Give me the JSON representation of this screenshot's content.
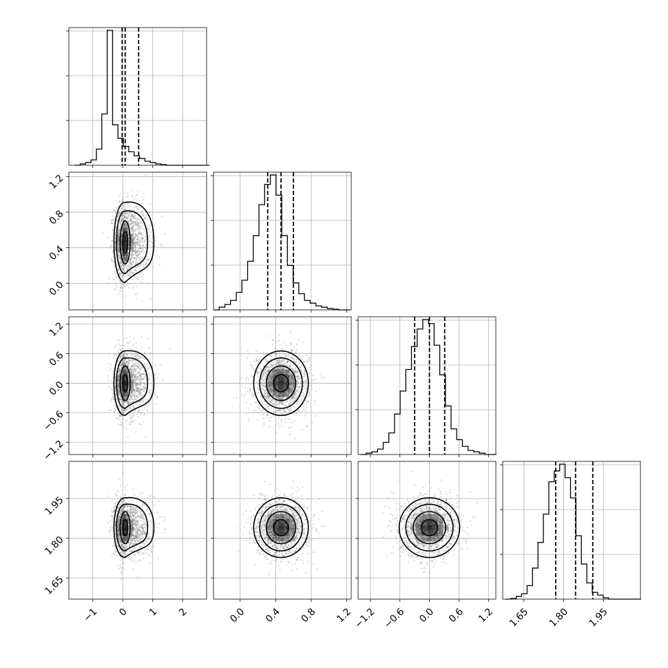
{
  "chart_data": {
    "type": "corner",
    "n_parameters": 4,
    "parameters": [
      {
        "index": 0,
        "label": "",
        "range": [
          -1.8,
          2.8
        ],
        "ticks": [
          -1,
          0,
          1,
          2
        ],
        "tick_labels": [
          "−1",
          "0",
          "1",
          "2"
        ]
      },
      {
        "index": 1,
        "label": "",
        "range": [
          -0.3,
          1.25
        ],
        "ticks": [
          0.0,
          0.4,
          0.8,
          1.2
        ],
        "tick_labels": [
          "0.0",
          "0.4",
          "0.8",
          "1.2"
        ]
      },
      {
        "index": 2,
        "label": "",
        "range": [
          -1.45,
          1.35
        ],
        "ticks": [
          -1.2,
          -0.6,
          0.0,
          0.6,
          1.2
        ],
        "tick_labels": [
          "−1.2",
          "−0.6",
          "0.0",
          "0.6",
          "1.2"
        ]
      },
      {
        "index": 3,
        "label": "",
        "range": [
          1.57,
          2.09
        ],
        "ticks": [
          1.65,
          1.8,
          1.95
        ],
        "tick_labels": [
          "1.65",
          "1.80",
          "1.95"
        ]
      }
    ],
    "marginals": [
      {
        "param": 0,
        "hist_edges_start": -1.6,
        "bin_width": 0.18,
        "counts": [
          0,
          0.01,
          0.02,
          0.04,
          0.12,
          0.38,
          1.0,
          0.3,
          0.2,
          0.14,
          0.1,
          0.07,
          0.05,
          0.03,
          0.02,
          0.01,
          0.005,
          0,
          0,
          0,
          0,
          0,
          0,
          0,
          0
        ],
        "quantiles": [
          -0.02,
          0.08,
          0.53
        ]
      },
      {
        "param": 1,
        "hist_edges_start": -0.3,
        "bin_width": 0.064,
        "counts": [
          0,
          0.02,
          0.04,
          0.07,
          0.13,
          0.22,
          0.36,
          0.55,
          0.78,
          0.93,
          1.0,
          0.85,
          0.55,
          0.33,
          0.2,
          0.12,
          0.07,
          0.05,
          0.03,
          0.02,
          0.01,
          0.005,
          0,
          0
        ],
        "quantiles": [
          0.31,
          0.46,
          0.6
        ]
      },
      {
        "param": 2,
        "hist_edges_start": -1.4,
        "bin_width": 0.115,
        "counts": [
          0,
          0.01,
          0.02,
          0.04,
          0.09,
          0.16,
          0.3,
          0.47,
          0.63,
          0.8,
          0.93,
          1.0,
          0.97,
          0.81,
          0.59,
          0.36,
          0.19,
          0.11,
          0.06,
          0.03,
          0.02,
          0.01,
          0,
          0
        ],
        "quantiles": [
          -0.3,
          0.0,
          0.31
        ]
      },
      {
        "param": 3,
        "hist_edges_start": 1.58,
        "bin_width": 0.0205,
        "counts": [
          0,
          0.005,
          0.02,
          0.04,
          0.1,
          0.23,
          0.42,
          0.63,
          0.87,
          0.95,
          1.0,
          0.9,
          0.75,
          0.47,
          0.26,
          0.12,
          0.05,
          0.03,
          0.01,
          0,
          0,
          0,
          0,
          0,
          0
        ],
        "quantiles": [
          1.77,
          1.845,
          1.91
        ]
      }
    ],
    "joint": [
      {
        "x_param": 0,
        "y_param": 1,
        "center": [
          0.08,
          0.46
        ],
        "spread": [
          0.18,
          0.22
        ],
        "skew_right": true
      },
      {
        "x_param": 0,
        "y_param": 2,
        "center": [
          0.08,
          0.0
        ],
        "spread": [
          0.18,
          0.32
        ],
        "skew_right": true
      },
      {
        "x_param": 0,
        "y_param": 3,
        "center": [
          0.08,
          1.84
        ],
        "spread": [
          0.18,
          0.055
        ],
        "skew_right": true
      },
      {
        "x_param": 1,
        "y_param": 2,
        "center": [
          0.46,
          0.0
        ],
        "spread": [
          0.15,
          0.32
        ],
        "skew_right": false
      },
      {
        "x_param": 1,
        "y_param": 3,
        "center": [
          0.46,
          1.84
        ],
        "spread": [
          0.15,
          0.055
        ],
        "skew_right": false
      },
      {
        "x_param": 2,
        "y_param": 3,
        "center": [
          0.0,
          1.84
        ],
        "spread": [
          0.3,
          0.055
        ],
        "skew_right": false
      }
    ],
    "contour_levels": [
      0.118,
      0.393,
      0.675,
      0.865
    ],
    "grid": true,
    "colors": {
      "line": "#000000",
      "points": "#6e6e6e",
      "grid": "#b0b0b0",
      "density": "#000000"
    }
  }
}
